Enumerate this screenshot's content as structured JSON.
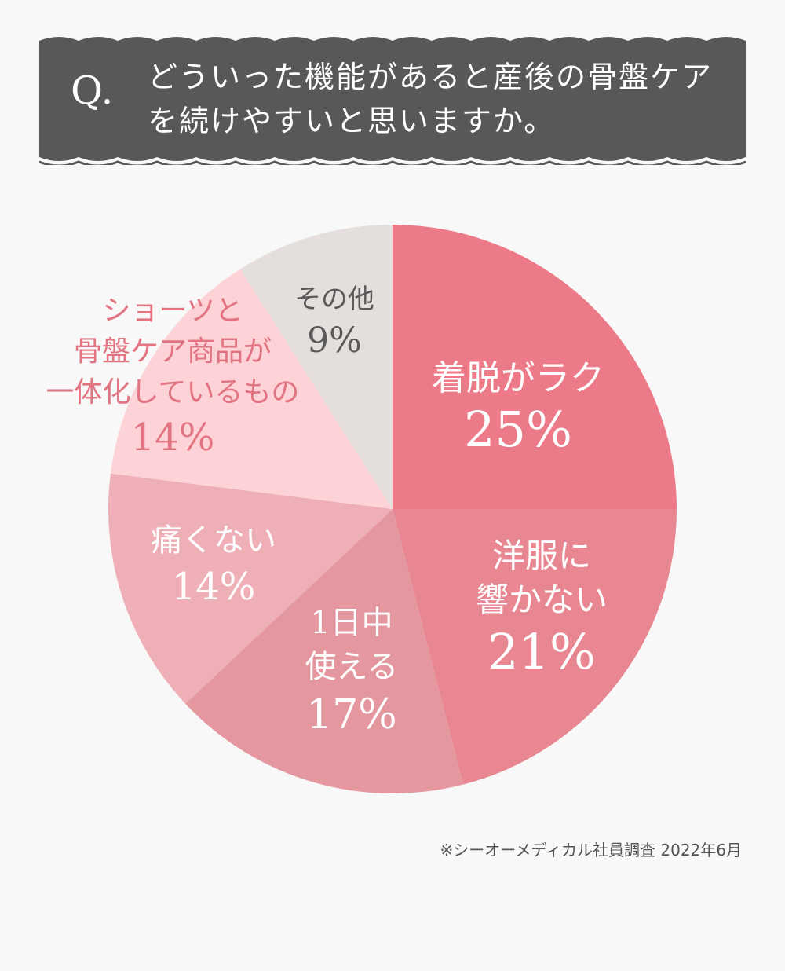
{
  "header": {
    "q_mark": "Q.",
    "question_lines": [
      "どういった機能があると産後の骨盤ケア",
      "を続けやすいと思いますか。"
    ]
  },
  "chart_data": {
    "type": "pie",
    "title": "どういった機能があると産後の骨盤ケアを続けやすいと思いますか。",
    "unit": "%",
    "slices": [
      {
        "label_lines": [
          "着脱がラク"
        ],
        "value": 25,
        "value_label": "25%",
        "color": "#ec7a88",
        "label_color": "#ffffff"
      },
      {
        "label_lines": [
          "洋服に",
          "響かない"
        ],
        "value": 21,
        "value_label": "21%",
        "color": "#e88692",
        "label_color": "#ffffff"
      },
      {
        "label_lines": [
          "1日中",
          "使える"
        ],
        "value": 17,
        "value_label": "17%",
        "color": "#e5979f",
        "label_color": "#ffffff"
      },
      {
        "label_lines": [
          "痛くない"
        ],
        "value": 14,
        "value_label": "14%",
        "color": "#eeb0b6",
        "label_color": "#ffffff"
      },
      {
        "label_lines": [
          "ショーツと",
          "骨盤ケア商品が",
          "一体化しているもの"
        ],
        "value": 14,
        "value_label": "14%",
        "color": "#fdd3d8",
        "label_color": "#e27482"
      },
      {
        "label_lines": [
          "その他"
        ],
        "value": 9,
        "value_label": "9%",
        "color": "#e4dedd",
        "label_color": "#5a5a5a"
      }
    ]
  },
  "footer": {
    "source": "※シーオーメディカル社員調査 2022年6月"
  }
}
